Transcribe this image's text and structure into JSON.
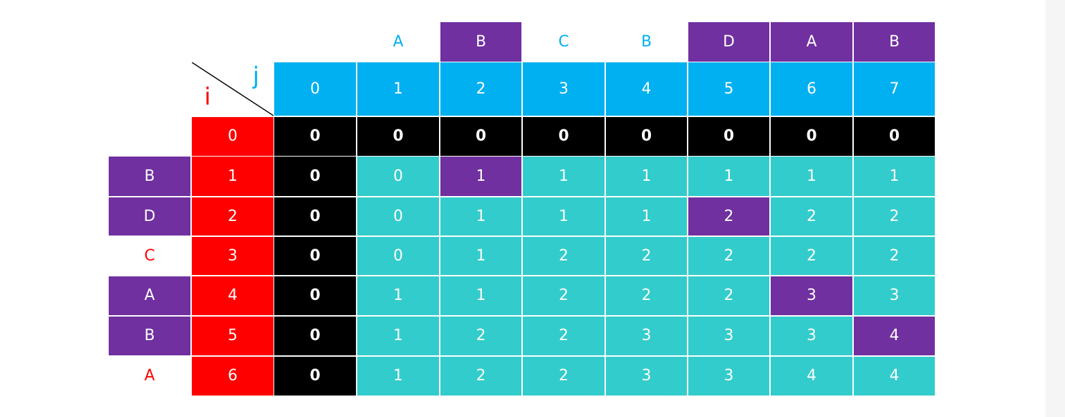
{
  "string_x": [
    "A",
    "B",
    "C",
    "B",
    "D",
    "A",
    "B"
  ],
  "string_y": [
    "B",
    "D",
    "C",
    "A",
    "B",
    "A"
  ],
  "col_indices": [
    "0",
    "1",
    "2",
    "3",
    "4",
    "5",
    "6",
    "7"
  ],
  "row_indices": [
    "0",
    "1",
    "2",
    "3",
    "4",
    "5",
    "6"
  ],
  "corner": {
    "col_label": "j",
    "row_label": "i"
  },
  "table": [
    [
      "0",
      "0",
      "0",
      "0",
      "0",
      "0",
      "0",
      "0"
    ],
    [
      "0",
      "0",
      "1",
      "1",
      "1",
      "1",
      "1",
      "1"
    ],
    [
      "0",
      "0",
      "1",
      "1",
      "1",
      "2",
      "2",
      "2"
    ],
    [
      "0",
      "0",
      "1",
      "2",
      "2",
      "2",
      "2",
      "2"
    ],
    [
      "0",
      "1",
      "1",
      "2",
      "2",
      "2",
      "3",
      "3"
    ],
    [
      "0",
      "1",
      "2",
      "2",
      "3",
      "3",
      "3",
      "4"
    ],
    [
      "0",
      "1",
      "2",
      "2",
      "3",
      "3",
      "4",
      "4"
    ]
  ],
  "highlighted_x": [
    false,
    true,
    false,
    false,
    true,
    true,
    true
  ],
  "highlighted_y": [
    true,
    true,
    false,
    true,
    true,
    false
  ],
  "highlighted_cells": [
    [
      1,
      2
    ],
    [
      2,
      5
    ],
    [
      4,
      6
    ],
    [
      5,
      7
    ]
  ],
  "colors": {
    "purple": "#7030a0",
    "blue": "#00b0f0",
    "red": "#ff0000",
    "green": "#33cccc",
    "black": "#000000"
  }
}
